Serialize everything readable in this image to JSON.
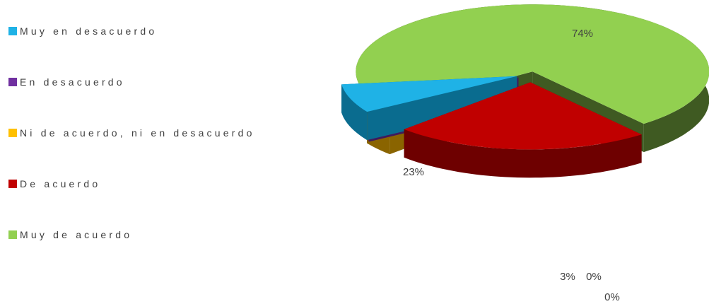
{
  "chart_data": {
    "type": "pie",
    "title": "",
    "legend_position": "left",
    "categories": [
      "Muy en desacuerdo",
      "En desacuerdo",
      "Ni de acuerdo, ni en desacuerdo",
      "De acuerdo",
      "Muy de acuerdo"
    ],
    "values": [
      0,
      0,
      3,
      23,
      74
    ],
    "data_labels": [
      "0%",
      "0%",
      "3%",
      "23%",
      "74%"
    ],
    "colors": [
      "#1fb2e6",
      "#7030a0",
      "#ffc000",
      "#c00000",
      "#92d050"
    ],
    "side_colors": [
      "#0a6c8f",
      "#3f1b5c",
      "#8a6400",
      "#6e0000",
      "#3f5a22"
    ],
    "exploded": true,
    "style": "3d"
  }
}
